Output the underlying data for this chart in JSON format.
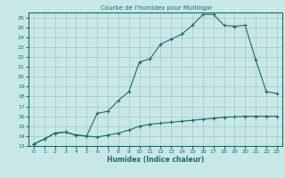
{
  "title": "Courbe de l'humidex pour Mullingar",
  "xlabel": "Humidex (Indice chaleur)",
  "background_color": "#c8e8e8",
  "grid_color": "#a0c8c8",
  "line_color": "#1a6b6b",
  "xlim": [
    -0.5,
    23.5
  ],
  "ylim": [
    13,
    26.5
  ],
  "xticks": [
    0,
    1,
    2,
    3,
    4,
    5,
    6,
    7,
    8,
    9,
    10,
    11,
    12,
    13,
    14,
    15,
    16,
    17,
    18,
    19,
    20,
    21,
    22,
    23
  ],
  "yticks": [
    13,
    14,
    15,
    16,
    17,
    18,
    19,
    20,
    21,
    22,
    23,
    24,
    25,
    26
  ],
  "line1_x": [
    0,
    1,
    2,
    3,
    4,
    5,
    6,
    7,
    8,
    9,
    10,
    11,
    12,
    13,
    14,
    15,
    16,
    17,
    18,
    19,
    20,
    21,
    22,
    23
  ],
  "line1_y": [
    13.2,
    13.7,
    14.3,
    14.4,
    14.1,
    14.0,
    13.9,
    14.1,
    14.3,
    14.6,
    15.0,
    15.2,
    15.3,
    15.4,
    15.5,
    15.6,
    15.7,
    15.8,
    15.9,
    15.95,
    16.0,
    16.0,
    16.0,
    16.0
  ],
  "line2_x": [
    0,
    1,
    2,
    3,
    4,
    5,
    6,
    7,
    8,
    9,
    10,
    11,
    12,
    13,
    14,
    15,
    16,
    17,
    18,
    19,
    20,
    21,
    22,
    23
  ],
  "line2_y": [
    13.2,
    13.7,
    14.3,
    14.4,
    14.1,
    14.0,
    16.3,
    16.5,
    17.6,
    18.5,
    21.5,
    21.8,
    23.3,
    23.8,
    24.3,
    25.2,
    26.3,
    26.3,
    25.2,
    25.1,
    25.2,
    21.7,
    18.5,
    18.3
  ]
}
